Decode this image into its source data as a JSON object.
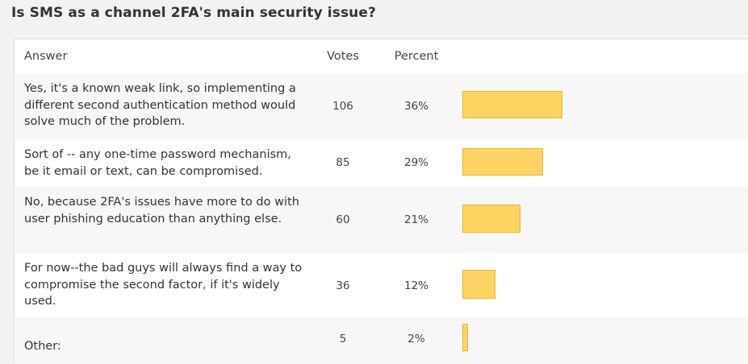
{
  "title": "Is SMS as a channel 2FA's main security issue?",
  "columns": {
    "answer": "Answer",
    "votes": "Votes",
    "percent": "Percent"
  },
  "bar_color": "#fcd462",
  "results": [
    {
      "answer": "Yes, it's a known weak link, so implementing a different second authentication method would solve much of the problem.",
      "votes": "106",
      "percent": "36%",
      "share": 0.36
    },
    {
      "answer": "Sort of -- any one-time password mechanism, be it email or text, can be compromised.",
      "votes": "85",
      "percent": "29%",
      "share": 0.29
    },
    {
      "answer": "No, because 2FA's issues have more to do with user phishing education than anything else.",
      "votes": "60",
      "percent": "21%",
      "share": 0.21
    },
    {
      "answer": "For now--the bad guys will always find a way to compromise the second factor, if it's widely used.",
      "votes": "36",
      "percent": "12%",
      "share": 0.12
    },
    {
      "answer": "Other:",
      "votes": "5",
      "percent": "2%",
      "share": 0.02
    }
  ]
}
